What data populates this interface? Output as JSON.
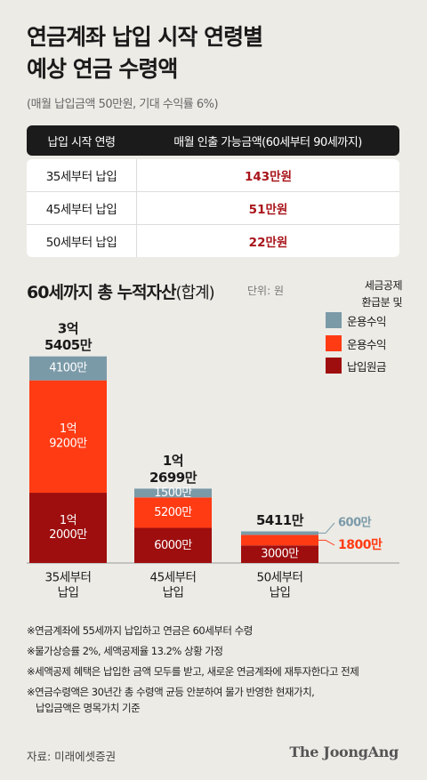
{
  "header": {
    "title_line1": "연금계좌 납입 시작 연령별",
    "title_line2": "예상 연금 수령액",
    "subtitle": "(매월 납입금액 50만원, 기대 수익률 6%)"
  },
  "table": {
    "col1": "납입 시작 연령",
    "col2": "매월 인출 가능금액(60세부터 90세까지)",
    "rows": [
      {
        "age": "35세부터 납입",
        "amount": "143만원"
      },
      {
        "age": "45세부터 납입",
        "amount": "51만원"
      },
      {
        "age": "50세부터 납입",
        "amount": "22만원"
      }
    ]
  },
  "chart_section": {
    "title_main": "60세까지 총 누적자산",
    "title_paren": "(합계)",
    "unit": "단위: 원"
  },
  "legend": {
    "heading_line1": "세금공제",
    "heading_line2": "환급분 및",
    "items": [
      {
        "label": "운용수익",
        "color": "#7b9aa8"
      },
      {
        "label": "운용수익",
        "color": "#ff3b14"
      },
      {
        "label": "납입원금",
        "color": "#9e0e0e"
      }
    ]
  },
  "chart_data": {
    "type": "bar",
    "stacked": true,
    "units": "만원",
    "categories": [
      "35세부터 납입",
      "45세부터 납입",
      "50세부터 납입"
    ],
    "category_labels": [
      [
        "35세부터",
        "납입"
      ],
      [
        "45세부터",
        "납입"
      ],
      [
        "50세부터",
        "납입"
      ]
    ],
    "series": [
      {
        "name": "납입원금",
        "color": "#9e0e0e",
        "values": [
          12000,
          6000,
          3000
        ],
        "labels": [
          [
            "1억",
            "2000만"
          ],
          [
            "6000만"
          ],
          [
            "3000만"
          ]
        ]
      },
      {
        "name": "운용수익",
        "color": "#ff3b14",
        "values": [
          19200,
          5200,
          1800
        ],
        "labels": [
          [
            "1억",
            "9200만"
          ],
          [
            "5200만"
          ],
          [
            "1800만"
          ]
        ]
      },
      {
        "name": "세금공제 환급분 및 운용수익",
        "color": "#7b9aa8",
        "values": [
          4100,
          1500,
          600
        ],
        "labels": [
          [
            "4100만"
          ],
          [
            "1500만"
          ],
          [
            "600만"
          ]
        ]
      }
    ],
    "totals": [
      35405,
      12699,
      5411
    ],
    "total_labels": [
      [
        "3억",
        "5405만"
      ],
      [
        "1억",
        "2699만"
      ],
      [
        "5411만"
      ]
    ]
  },
  "footnotes": [
    [
      "※연금계좌에 55세까지 납입하고 연금은 60세부터 수령"
    ],
    [
      "※물가상승률 2%, 세액공제율 13.2% 상황 가정"
    ],
    [
      "※세액공제 혜택은 납입한 금액 모두를 받고, 새로운 연금계좌에 재투자한다고 전제"
    ],
    [
      "※연금수령액은 30년간 총 수령액 균등 안분하여 물가 반영한 현재가치,",
      "납입금액은 명목가치 기준"
    ]
  ],
  "source": "자료: 미래에셋증권",
  "brand": "The JoongAng"
}
